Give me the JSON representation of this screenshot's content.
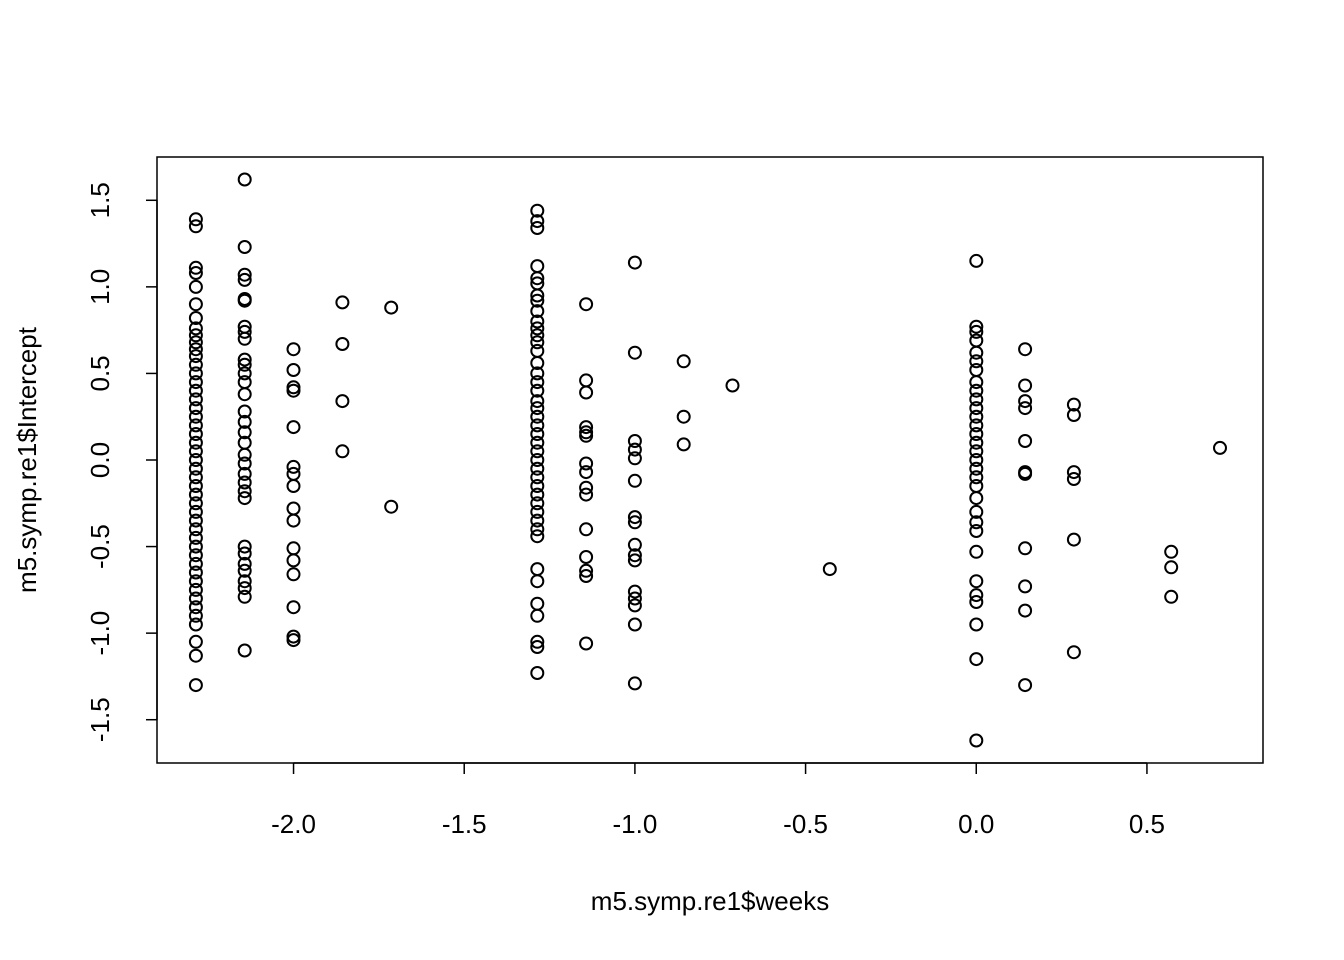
{
  "chart_data": {
    "type": "scatter",
    "title": "",
    "xlabel": "m5.symp.re1$weeks",
    "ylabel": "m5.symp.re1$Intercept",
    "xlim": [
      -2.4,
      0.84
    ],
    "ylim": [
      -1.75,
      1.75
    ],
    "x_ticks": [
      -2.0,
      -1.5,
      -1.0,
      -0.5,
      0.0,
      0.5
    ],
    "x_tick_labels": [
      "-2.0",
      "-1.5",
      "-1.0",
      "-0.5",
      "0.0",
      "0.5"
    ],
    "y_ticks": [
      -1.5,
      -1.0,
      -0.5,
      0.0,
      0.5,
      1.0,
      1.5
    ],
    "y_tick_labels": [
      "-1.5",
      "-1.0",
      "-0.5",
      "0.0",
      "0.5",
      "1.0",
      "1.5"
    ],
    "grid": false,
    "series": [
      {
        "marker": "open-circle",
        "points": [
          [
            -2.286,
            1.39
          ],
          [
            -2.286,
            1.35
          ],
          [
            -2.286,
            1.11
          ],
          [
            -2.286,
            1.08
          ],
          [
            -2.286,
            1.0
          ],
          [
            -2.286,
            0.9
          ],
          [
            -2.286,
            0.82
          ],
          [
            -2.286,
            0.76
          ],
          [
            -2.286,
            0.72
          ],
          [
            -2.286,
            0.68
          ],
          [
            -2.286,
            0.64
          ],
          [
            -2.286,
            0.6
          ],
          [
            -2.286,
            0.55
          ],
          [
            -2.286,
            0.5
          ],
          [
            -2.286,
            0.45
          ],
          [
            -2.286,
            0.4
          ],
          [
            -2.286,
            0.35
          ],
          [
            -2.286,
            0.3
          ],
          [
            -2.286,
            0.25
          ],
          [
            -2.286,
            0.2
          ],
          [
            -2.286,
            0.15
          ],
          [
            -2.286,
            0.1
          ],
          [
            -2.286,
            0.05
          ],
          [
            -2.286,
            0.0
          ],
          [
            -2.286,
            -0.05
          ],
          [
            -2.286,
            -0.1
          ],
          [
            -2.286,
            -0.15
          ],
          [
            -2.286,
            -0.2
          ],
          [
            -2.286,
            -0.25
          ],
          [
            -2.286,
            -0.3
          ],
          [
            -2.286,
            -0.35
          ],
          [
            -2.286,
            -0.4
          ],
          [
            -2.286,
            -0.45
          ],
          [
            -2.286,
            -0.5
          ],
          [
            -2.286,
            -0.55
          ],
          [
            -2.286,
            -0.6
          ],
          [
            -2.286,
            -0.65
          ],
          [
            -2.286,
            -0.7
          ],
          [
            -2.286,
            -0.75
          ],
          [
            -2.286,
            -0.8
          ],
          [
            -2.286,
            -0.85
          ],
          [
            -2.286,
            -0.9
          ],
          [
            -2.286,
            -0.95
          ],
          [
            -2.286,
            -1.05
          ],
          [
            -2.286,
            -1.13
          ],
          [
            -2.286,
            -1.3
          ],
          [
            -2.143,
            1.62
          ],
          [
            -2.143,
            1.23
          ],
          [
            -2.143,
            1.07
          ],
          [
            -2.143,
            1.04
          ],
          [
            -2.143,
            0.93
          ],
          [
            -2.143,
            0.92
          ],
          [
            -2.143,
            0.77
          ],
          [
            -2.143,
            0.74
          ],
          [
            -2.143,
            0.7
          ],
          [
            -2.143,
            0.58
          ],
          [
            -2.143,
            0.55
          ],
          [
            -2.143,
            0.5
          ],
          [
            -2.143,
            0.45
          ],
          [
            -2.143,
            0.38
          ],
          [
            -2.143,
            0.28
          ],
          [
            -2.143,
            0.22
          ],
          [
            -2.143,
            0.16
          ],
          [
            -2.143,
            0.1
          ],
          [
            -2.143,
            0.03
          ],
          [
            -2.143,
            -0.02
          ],
          [
            -2.143,
            -0.08
          ],
          [
            -2.143,
            -0.13
          ],
          [
            -2.143,
            -0.18
          ],
          [
            -2.143,
            -0.22
          ],
          [
            -2.143,
            -0.5
          ],
          [
            -2.143,
            -0.54
          ],
          [
            -2.143,
            -0.6
          ],
          [
            -2.143,
            -0.64
          ],
          [
            -2.143,
            -0.7
          ],
          [
            -2.143,
            -0.74
          ],
          [
            -2.143,
            -0.79
          ],
          [
            -2.143,
            -1.1
          ],
          [
            -2.0,
            0.64
          ],
          [
            -2.0,
            0.52
          ],
          [
            -2.0,
            0.42
          ],
          [
            -2.0,
            0.4
          ],
          [
            -2.0,
            0.19
          ],
          [
            -2.0,
            -0.04
          ],
          [
            -2.0,
            -0.08
          ],
          [
            -2.0,
            -0.15
          ],
          [
            -2.0,
            -0.28
          ],
          [
            -2.0,
            -0.35
          ],
          [
            -2.0,
            -0.51
          ],
          [
            -2.0,
            -0.58
          ],
          [
            -2.0,
            -0.66
          ],
          [
            -2.0,
            -0.85
          ],
          [
            -2.0,
            -1.02
          ],
          [
            -2.0,
            -1.04
          ],
          [
            -1.857,
            0.91
          ],
          [
            -1.857,
            0.67
          ],
          [
            -1.857,
            0.34
          ],
          [
            -1.857,
            0.05
          ],
          [
            -1.714,
            0.88
          ],
          [
            -1.714,
            -0.27
          ],
          [
            -1.286,
            1.44
          ],
          [
            -1.286,
            1.38
          ],
          [
            -1.286,
            1.34
          ],
          [
            -1.286,
            1.12
          ],
          [
            -1.286,
            1.05
          ],
          [
            -1.286,
            1.02
          ],
          [
            -1.286,
            0.95
          ],
          [
            -1.286,
            0.92
          ],
          [
            -1.286,
            0.86
          ],
          [
            -1.286,
            0.8
          ],
          [
            -1.286,
            0.76
          ],
          [
            -1.286,
            0.72
          ],
          [
            -1.286,
            0.68
          ],
          [
            -1.286,
            0.63
          ],
          [
            -1.286,
            0.56
          ],
          [
            -1.286,
            0.5
          ],
          [
            -1.286,
            0.45
          ],
          [
            -1.286,
            0.4
          ],
          [
            -1.286,
            0.34
          ],
          [
            -1.286,
            0.3
          ],
          [
            -1.286,
            0.25
          ],
          [
            -1.286,
            0.2
          ],
          [
            -1.286,
            0.15
          ],
          [
            -1.286,
            0.1
          ],
          [
            -1.286,
            0.05
          ],
          [
            -1.286,
            0.0
          ],
          [
            -1.286,
            -0.05
          ],
          [
            -1.286,
            -0.1
          ],
          [
            -1.286,
            -0.15
          ],
          [
            -1.286,
            -0.2
          ],
          [
            -1.286,
            -0.25
          ],
          [
            -1.286,
            -0.3
          ],
          [
            -1.286,
            -0.35
          ],
          [
            -1.286,
            -0.4
          ],
          [
            -1.286,
            -0.44
          ],
          [
            -1.286,
            -0.63
          ],
          [
            -1.286,
            -0.7
          ],
          [
            -1.286,
            -0.83
          ],
          [
            -1.286,
            -0.9
          ],
          [
            -1.286,
            -1.05
          ],
          [
            -1.286,
            -1.08
          ],
          [
            -1.286,
            -1.23
          ],
          [
            -1.143,
            0.9
          ],
          [
            -1.143,
            0.46
          ],
          [
            -1.143,
            0.39
          ],
          [
            -1.143,
            0.19
          ],
          [
            -1.143,
            0.16
          ],
          [
            -1.143,
            0.14
          ],
          [
            -1.143,
            -0.02
          ],
          [
            -1.143,
            -0.07
          ],
          [
            -1.143,
            -0.16
          ],
          [
            -1.143,
            -0.2
          ],
          [
            -1.143,
            -0.4
          ],
          [
            -1.143,
            -0.56
          ],
          [
            -1.143,
            -0.64
          ],
          [
            -1.143,
            -0.67
          ],
          [
            -1.143,
            -1.06
          ],
          [
            -1.0,
            1.14
          ],
          [
            -1.0,
            0.62
          ],
          [
            -1.0,
            0.11
          ],
          [
            -1.0,
            0.06
          ],
          [
            -1.0,
            0.01
          ],
          [
            -1.0,
            -0.12
          ],
          [
            -1.0,
            -0.33
          ],
          [
            -1.0,
            -0.36
          ],
          [
            -1.0,
            -0.49
          ],
          [
            -1.0,
            -0.55
          ],
          [
            -1.0,
            -0.58
          ],
          [
            -1.0,
            -0.76
          ],
          [
            -1.0,
            -0.8
          ],
          [
            -1.0,
            -0.84
          ],
          [
            -1.0,
            -0.95
          ],
          [
            -1.0,
            -1.29
          ],
          [
            -0.857,
            0.57
          ],
          [
            -0.857,
            0.25
          ],
          [
            -0.857,
            0.09
          ],
          [
            -0.714,
            0.43
          ],
          [
            -0.429,
            -0.63
          ],
          [
            0.0,
            1.15
          ],
          [
            0.0,
            0.77
          ],
          [
            0.0,
            0.74
          ],
          [
            0.0,
            0.69
          ],
          [
            0.0,
            0.62
          ],
          [
            0.0,
            0.57
          ],
          [
            0.0,
            0.52
          ],
          [
            0.0,
            0.45
          ],
          [
            0.0,
            0.4
          ],
          [
            0.0,
            0.35
          ],
          [
            0.0,
            0.3
          ],
          [
            0.0,
            0.25
          ],
          [
            0.0,
            0.2
          ],
          [
            0.0,
            0.15
          ],
          [
            0.0,
            0.1
          ],
          [
            0.0,
            0.05
          ],
          [
            0.0,
            0.0
          ],
          [
            0.0,
            -0.05
          ],
          [
            0.0,
            -0.1
          ],
          [
            0.0,
            -0.15
          ],
          [
            0.0,
            -0.22
          ],
          [
            0.0,
            -0.3
          ],
          [
            0.0,
            -0.36
          ],
          [
            0.0,
            -0.41
          ],
          [
            0.0,
            -0.53
          ],
          [
            0.0,
            -0.7
          ],
          [
            0.0,
            -0.78
          ],
          [
            0.0,
            -0.82
          ],
          [
            0.0,
            -0.95
          ],
          [
            0.0,
            -1.15
          ],
          [
            0.0,
            -1.62
          ],
          [
            0.143,
            0.64
          ],
          [
            0.143,
            0.43
          ],
          [
            0.143,
            0.34
          ],
          [
            0.143,
            0.3
          ],
          [
            0.143,
            0.11
          ],
          [
            0.143,
            -0.07
          ],
          [
            0.143,
            -0.08
          ],
          [
            0.143,
            -0.51
          ],
          [
            0.143,
            -0.73
          ],
          [
            0.143,
            -0.87
          ],
          [
            0.143,
            -1.3
          ],
          [
            0.286,
            0.32
          ],
          [
            0.286,
            0.26
          ],
          [
            0.286,
            -0.07
          ],
          [
            0.286,
            -0.11
          ],
          [
            0.286,
            -0.46
          ],
          [
            0.286,
            -1.11
          ],
          [
            0.571,
            -0.53
          ],
          [
            0.571,
            -0.62
          ],
          [
            0.571,
            -0.79
          ],
          [
            0.714,
            0.07
          ]
        ]
      }
    ]
  }
}
